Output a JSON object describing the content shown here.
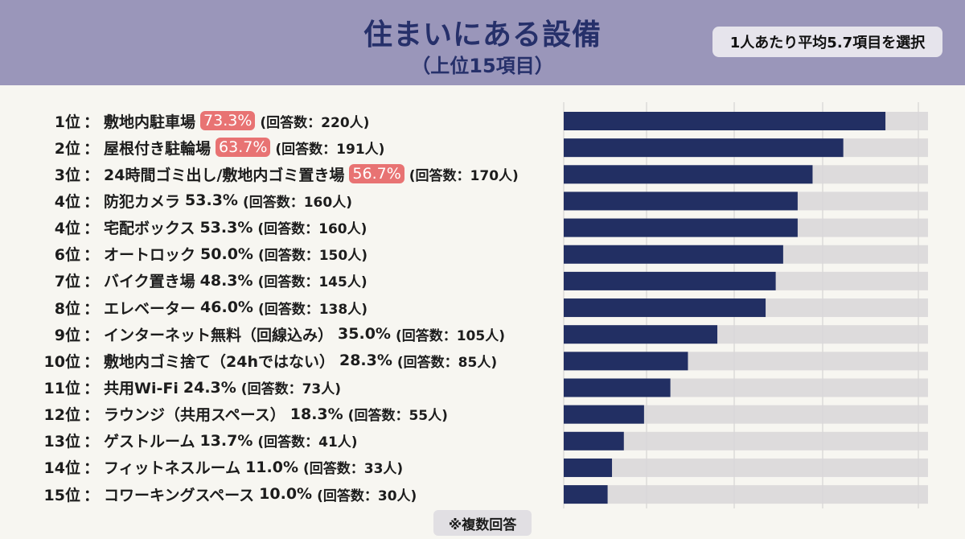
{
  "header": {
    "title": "住まいにある設備",
    "subtitle": "（上位15項目）",
    "badge": "1人あたり平均5.7項目を選択"
  },
  "footer_note": "※複数回答",
  "colors": {
    "bar": "#222f63",
    "track": "#d8d6d8",
    "highlight": "#e87373",
    "header_bg": "#9a96ba"
  },
  "chart_data": {
    "type": "bar",
    "orientation": "horizontal",
    "title": "住まいにある設備",
    "subtitle": "（上位15項目）",
    "grid": true,
    "unit": "%",
    "rows": [
      {
        "rank": "1位",
        "label": "敷地内駐車場",
        "value": 73.3,
        "pct": "73.3%",
        "count": "(回答数：220人)",
        "highlight": true
      },
      {
        "rank": "2位",
        "label": "屋根付き駐輪場",
        "value": 63.7,
        "pct": "63.7%",
        "count": "(回答数：191人)",
        "highlight": true
      },
      {
        "rank": "3位",
        "label": "24時間ゴミ出し/敷地内ゴミ置き場",
        "value": 56.7,
        "pct": "56.7%",
        "count": "(回答数：170人)",
        "highlight": true
      },
      {
        "rank": "4位",
        "label": "防犯カメラ",
        "value": 53.3,
        "pct": "53.3%",
        "count": "(回答数：160人)",
        "highlight": false
      },
      {
        "rank": "4位",
        "label": "宅配ボックス",
        "value": 53.3,
        "pct": "53.3%",
        "count": "(回答数：160人)",
        "highlight": false
      },
      {
        "rank": "6位",
        "label": "オートロック",
        "value": 50.0,
        "pct": "50.0%",
        "count": "(回答数：150人)",
        "highlight": false
      },
      {
        "rank": "7位",
        "label": "バイク置き場",
        "value": 48.3,
        "pct": "48.3%",
        "count": "(回答数：145人)",
        "highlight": false
      },
      {
        "rank": "8位",
        "label": "エレベーター",
        "value": 46.0,
        "pct": "46.0%",
        "count": "(回答数：138人)",
        "highlight": false
      },
      {
        "rank": "9位",
        "label": "インターネット無料（回線込み）",
        "value": 35.0,
        "pct": "35.0%",
        "count": "(回答数：105人)",
        "highlight": false
      },
      {
        "rank": "10位",
        "label": "敷地内ゴミ捨て（24hではない）",
        "value": 28.3,
        "pct": "28.3%",
        "count": "(回答数：85人)",
        "highlight": false
      },
      {
        "rank": "11位",
        "label": "共用Wi-Fi",
        "value": 24.3,
        "pct": "24.3%",
        "count": "(回答数：73人)",
        "highlight": false
      },
      {
        "rank": "12位",
        "label": "ラウンジ（共用スペース）",
        "value": 18.3,
        "pct": "18.3%",
        "count": "(回答数：55人)",
        "highlight": false
      },
      {
        "rank": "13位",
        "label": "ゲストルーム",
        "value": 13.7,
        "pct": "13.7%",
        "count": "(回答数：41人)",
        "highlight": false
      },
      {
        "rank": "14位",
        "label": "フィットネスルーム",
        "value": 11.0,
        "pct": "11.0%",
        "count": "(回答数：33人)",
        "highlight": false
      },
      {
        "rank": "15位",
        "label": "コワーキングスペース",
        "value": 10.0,
        "pct": "10.0%",
        "count": "(回答数：30人)",
        "highlight": false
      }
    ],
    "xlim": [
      0,
      83
    ]
  }
}
